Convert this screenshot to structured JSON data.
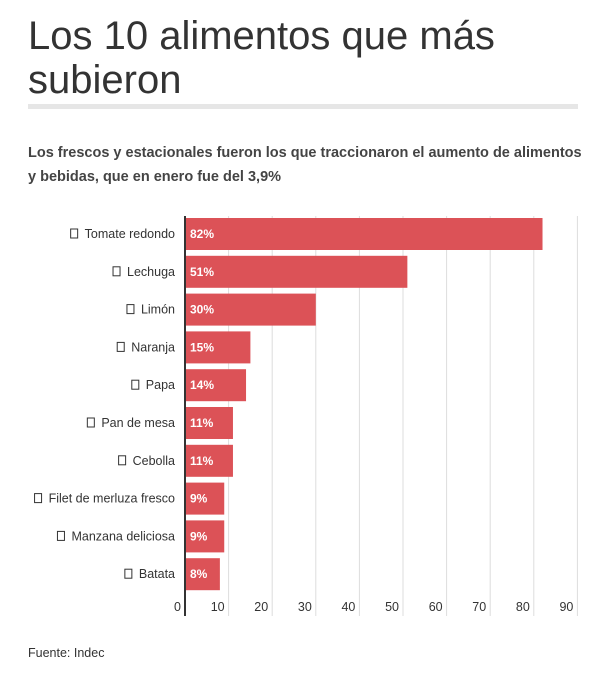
{
  "title": "Los 10 alimentos que más subieron",
  "subtitle": "Los frescos y estacionales fueron los que traccionaron el aumento de alimentos y bebidas, que en enero fue del 3,9%",
  "source": "Fuente: Indec",
  "chart_data": {
    "type": "bar",
    "orientation": "horizontal",
    "categories": [
      "Tomate redondo",
      "Lechuga",
      "Limón",
      "Naranja",
      "Papa",
      "Pan de mesa",
      "Cebolla",
      "Filet de merluza fresco",
      "Manzana deliciosa",
      "Batata"
    ],
    "values": [
      82,
      51,
      30,
      15,
      14,
      11,
      11,
      9,
      9,
      8
    ],
    "data_labels": [
      "82%",
      "51%",
      "30%",
      "15%",
      "14%",
      "11%",
      "11%",
      "9%",
      "9%",
      "8%"
    ],
    "xlim": [
      0,
      93
    ],
    "xticks": [
      0,
      10,
      20,
      30,
      40,
      50,
      60,
      70,
      80,
      90
    ],
    "grid": true,
    "bar_color": "#dc5257",
    "category_icon": "□"
  }
}
